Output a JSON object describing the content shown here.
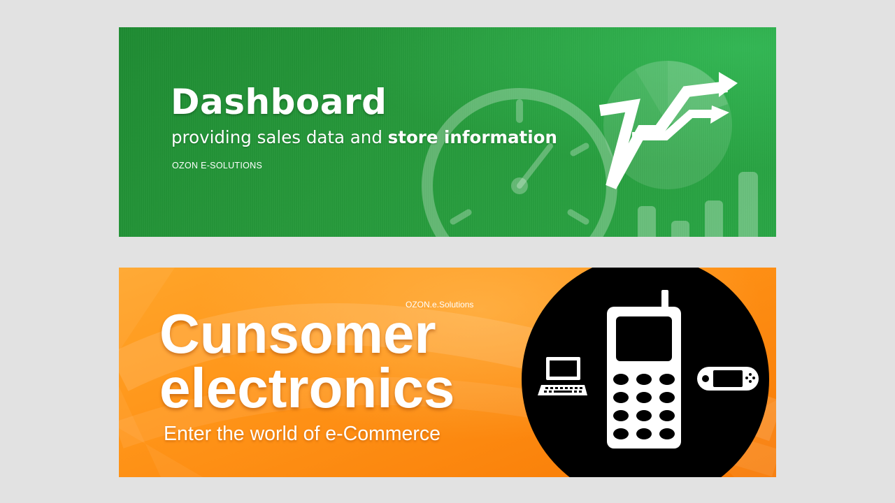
{
  "banners": {
    "dashboard": {
      "title": "Dashboard",
      "subtitle_plain": "providing sales data and ",
      "subtitle_bold": "store information",
      "brand": "OZON E-SOLUTIONS",
      "background_color": "#279a3b",
      "icons": [
        "stopwatch-icon",
        "pie-chart-icon",
        "trend-arrows-icon",
        "bar-chart-icon"
      ]
    },
    "electronics": {
      "brand": "OZON.e.Solutions",
      "title_line1": "Cunsomer",
      "title_line2": "electronics",
      "tagline": "Enter the world of e-Commerce",
      "background_color": "#ff9418",
      "icons": [
        "laptop-icon",
        "mobile-phone-icon",
        "game-console-icon"
      ]
    }
  }
}
